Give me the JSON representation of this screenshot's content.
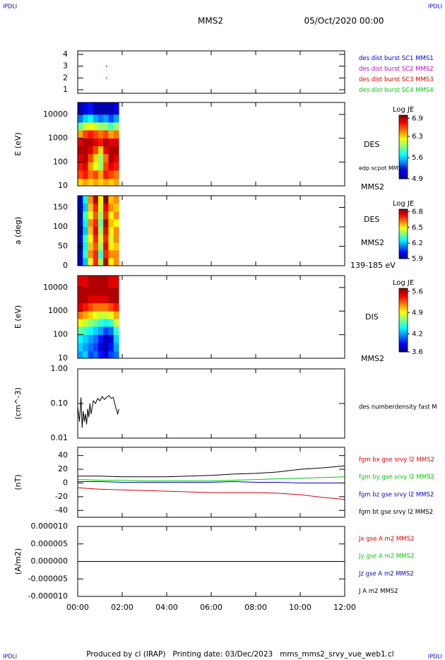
{
  "header": {
    "corner": "IPDLI",
    "title": "MMS2",
    "date": "05/Oct/2020 00:00"
  },
  "footer": "Produced by cl (IRAP)   Printing date: 03/Dec/2023   mms_mms2_srvy_vue_web1.cl",
  "chart_data": [
    {
      "type": "scatter",
      "ylim": [
        0.7,
        4.3
      ],
      "yticks": [
        1,
        2,
        3,
        4
      ],
      "x": [
        1.3,
        1.3
      ],
      "series": [
        {
          "name": "des dist burst SC1 MMS1",
          "color": "#0000cc",
          "values": [
            null,
            null
          ]
        },
        {
          "name": "des dist burst SC2 MMS2",
          "color": "#cc00cc",
          "values": [
            null,
            null
          ]
        },
        {
          "name": "des dist burst SC3 MMS3",
          "color": "#dd0000",
          "values": [
            3,
            2
          ]
        },
        {
          "name": "des dist burst SC4 MMS4",
          "color": "#00cc00",
          "values": [
            null,
            null
          ]
        }
      ]
    },
    {
      "type": "heatmap",
      "ylabel": "E (eV)",
      "log": true,
      "ylim": [
        10,
        32000
      ],
      "yticks": [
        10,
        100,
        1000,
        10000
      ],
      "side_labels": [
        "DES",
        "edp scpot MMS2",
        "MMS2"
      ],
      "clabel": "Log JE",
      "clim": [
        4.9,
        7.0
      ],
      "cticks": [
        6.9,
        6.3,
        5.6,
        4.9
      ],
      "x_edges": [
        0,
        0.23,
        0.46,
        0.69,
        0.92,
        1.15,
        1.38,
        1.61,
        1.85
      ],
      "y_edges": [
        10,
        20,
        45,
        100,
        220,
        470,
        1000,
        2200,
        4700,
        10000,
        32000
      ],
      "z": [
        [
          6.3,
          6.4,
          6.3,
          6.4,
          6.3,
          6.4,
          6.3,
          6.4
        ],
        [
          6.6,
          6.7,
          6.5,
          6.6,
          6.4,
          6.7,
          6.6,
          6.5
        ],
        [
          6.7,
          6.8,
          6.4,
          6.2,
          6.0,
          6.6,
          6.8,
          6.7
        ],
        [
          6.8,
          6.9,
          6.6,
          6.3,
          6.0,
          6.5,
          6.9,
          6.8
        ],
        [
          6.9,
          6.9,
          6.8,
          6.6,
          6.3,
          6.8,
          6.9,
          6.9
        ],
        [
          6.8,
          6.9,
          6.9,
          6.8,
          6.7,
          6.9,
          6.8,
          6.8
        ],
        [
          6.4,
          6.6,
          6.7,
          6.6,
          6.5,
          6.6,
          6.4,
          6.5
        ],
        [
          5.9,
          6.1,
          6.2,
          6.1,
          6.0,
          6.0,
          5.8,
          6.0
        ],
        [
          5.4,
          5.6,
          5.7,
          5.5,
          5.4,
          5.5,
          5.3,
          5.5
        ],
        [
          5.0,
          5.1,
          5.2,
          5.0,
          5.0,
          5.0,
          5.0,
          5.1
        ]
      ]
    },
    {
      "type": "heatmap",
      "ylabel": "a (deg)",
      "log": false,
      "ylim": [
        0,
        180
      ],
      "yticks": [
        0,
        50,
        100,
        150
      ],
      "side_labels": [
        "DES",
        "MMS2",
        "139-185 eV"
      ],
      "clabel": "Log JE",
      "clim": [
        5.9,
        6.85
      ],
      "cticks": [
        6.8,
        6.5,
        6.2,
        5.9
      ],
      "x_edges": [
        0,
        0.23,
        0.46,
        0.69,
        0.92,
        1.15,
        1.38,
        1.61,
        1.85
      ],
      "y_edges": [
        0,
        20,
        40,
        60,
        80,
        100,
        120,
        140,
        160,
        180
      ],
      "z": [
        [
          5.95,
          6.2,
          6.5,
          6.7,
          6.4,
          6.8,
          6.5,
          6.6
        ],
        [
          5.95,
          6.3,
          6.6,
          6.7,
          6.3,
          6.7,
          6.6,
          6.6
        ],
        [
          5.9,
          6.25,
          6.55,
          6.65,
          6.4,
          6.75,
          6.5,
          6.55
        ],
        [
          5.95,
          6.3,
          6.5,
          6.7,
          6.45,
          6.7,
          6.45,
          6.6
        ],
        [
          5.9,
          6.2,
          6.55,
          6.75,
          6.4,
          6.75,
          6.5,
          6.6
        ],
        [
          5.95,
          6.25,
          6.6,
          6.7,
          6.35,
          6.8,
          6.55,
          6.5
        ],
        [
          5.9,
          6.3,
          6.5,
          6.65,
          6.4,
          6.7,
          6.5,
          6.6
        ],
        [
          5.95,
          6.2,
          6.55,
          6.7,
          6.45,
          6.75,
          6.6,
          6.55
        ],
        [
          5.95,
          6.25,
          6.6,
          6.8,
          6.5,
          6.85,
          6.55,
          6.6
        ]
      ]
    },
    {
      "type": "heatmap",
      "ylabel": "E (eV)",
      "log": true,
      "ylim": [
        10,
        32000
      ],
      "yticks": [
        10,
        100,
        1000,
        10000
      ],
      "side_labels": [
        "DIS",
        "MMS2"
      ],
      "clabel": "Log JE",
      "clim": [
        3.6,
        5.7
      ],
      "cticks": [
        5.6,
        4.9,
        4.2,
        3.6
      ],
      "x_edges": [
        0,
        0.23,
        0.46,
        0.69,
        0.92,
        1.15,
        1.38,
        1.61,
        1.85
      ],
      "y_edges": [
        10,
        20,
        45,
        100,
        220,
        470,
        1000,
        2200,
        4700,
        10000,
        32000
      ],
      "z": [
        [
          4.2,
          4.3,
          4.0,
          4.1,
          3.9,
          3.8,
          4.0,
          4.1
        ],
        [
          4.3,
          4.2,
          4.1,
          4.0,
          3.8,
          3.7,
          3.9,
          4.2
        ],
        [
          4.4,
          4.3,
          4.2,
          4.1,
          3.9,
          3.7,
          3.8,
          4.3
        ],
        [
          4.6,
          4.5,
          4.4,
          4.3,
          4.2,
          4.0,
          4.1,
          4.5
        ],
        [
          4.9,
          4.8,
          4.7,
          4.6,
          4.5,
          4.4,
          4.5,
          4.8
        ],
        [
          5.2,
          5.1,
          5.0,
          4.9,
          4.8,
          4.8,
          4.9,
          5.1
        ],
        [
          5.5,
          5.4,
          5.3,
          5.2,
          5.2,
          5.2,
          5.3,
          5.4
        ],
        [
          5.6,
          5.6,
          5.5,
          5.5,
          5.5,
          5.5,
          5.6,
          5.6
        ],
        [
          5.6,
          5.6,
          5.6,
          5.6,
          5.6,
          5.6,
          5.6,
          5.6
        ],
        [
          5.5,
          5.5,
          5.6,
          5.6,
          5.6,
          5.6,
          5.5,
          5.5
        ]
      ]
    },
    {
      "type": "line",
      "ylabel": "(cm^-3)",
      "log": true,
      "ylim": [
        0.01,
        1
      ],
      "yticks": [
        {
          "value": 1,
          "label": "1.00"
        },
        {
          "value": 0.1,
          "label": "0.10"
        },
        {
          "value": 0.01,
          "label": "0.01"
        }
      ],
      "x": [
        0,
        0.08,
        0.15,
        0.2,
        0.25,
        0.3,
        0.35,
        0.4,
        0.45,
        0.5,
        0.55,
        0.6,
        0.7,
        0.8,
        0.9,
        1.0,
        1.1,
        1.2,
        1.3,
        1.4,
        1.5,
        1.6,
        1.7,
        1.8,
        1.85
      ],
      "series": [
        {
          "name": "des numberdensity fast M",
          "color": "#000000",
          "values": [
            0.08,
            0.03,
            0.15,
            0.02,
            0.06,
            0.03,
            0.05,
            0.025,
            0.07,
            0.04,
            0.1,
            0.05,
            0.12,
            0.1,
            0.14,
            0.12,
            0.16,
            0.13,
            0.15,
            0.17,
            0.14,
            0.15,
            0.08,
            0.05,
            0.07
          ]
        }
      ]
    },
    {
      "type": "line",
      "ylabel": "(nT)",
      "log": false,
      "ylim": [
        -50,
        52
      ],
      "yticks": [
        40,
        20,
        0,
        -20,
        -40
      ],
      "x": [
        0,
        1,
        2,
        3,
        4,
        5,
        6,
        7,
        8,
        9,
        10,
        11,
        12
      ],
      "series": [
        {
          "name": "fgm bx gse srvy l2 MMS2",
          "color": "#dd0000",
          "values": [
            -7,
            -9,
            -10,
            -11,
            -12,
            -13,
            -14,
            -14,
            -14,
            -15,
            -17,
            -21,
            -24
          ]
        },
        {
          "name": "fgm by gse srvy l2 MMS2",
          "color": "#00cc00",
          "values": [
            5,
            4,
            4,
            3,
            3,
            3,
            3,
            4,
            5,
            6,
            7,
            8,
            9
          ]
        },
        {
          "name": "fgm bz gse srvy l2 MMS2",
          "color": "#0000cc",
          "values": [
            2,
            2,
            1,
            1,
            1,
            1,
            1,
            2,
            1,
            1,
            0,
            0,
            0
          ]
        },
        {
          "name": "fgm bt gse srvy l2 MMS2",
          "color": "#000000",
          "values": [
            10,
            10,
            9,
            9,
            9,
            10,
            11,
            13,
            14,
            16,
            20,
            22,
            25
          ]
        }
      ]
    },
    {
      "type": "line",
      "ylabel": "(A/m2)",
      "log": false,
      "ylim": [
        -1e-05,
        1e-05
      ],
      "yticks": [
        {
          "value": 1e-05,
          "label": "0.000010"
        },
        {
          "value": 5e-06,
          "label": "0.000005"
        },
        {
          "value": 0,
          "label": "0.000000"
        },
        {
          "value": -5e-06,
          "label": "-0.000005"
        },
        {
          "value": -1e-05,
          "label": "-0.000010"
        }
      ],
      "x": [
        0,
        12
      ],
      "xlim": [
        0,
        12
      ],
      "xticks": [
        {
          "value": 0,
          "label": "00:00"
        },
        {
          "value": 2,
          "label": "02:00"
        },
        {
          "value": 4,
          "label": "04:00"
        },
        {
          "value": 6,
          "label": "06:00"
        },
        {
          "value": 8,
          "label": "08:00"
        },
        {
          "value": 10,
          "label": "10:00"
        },
        {
          "value": 12,
          "label": "12:00"
        }
      ],
      "series": [
        {
          "name": "Jx gse A m2 MMS2",
          "color": "#dd0000",
          "values": [
            0,
            0
          ]
        },
        {
          "name": "Jy gse A m2 MMS2",
          "color": "#00cc00",
          "values": [
            0,
            0
          ]
        },
        {
          "name": "Jz gse A m2 MMS2",
          "color": "#0000cc",
          "values": [
            0,
            0
          ]
        },
        {
          "name": "J A m2 MMS2",
          "color": "#000000",
          "values": [
            0,
            0
          ]
        }
      ]
    }
  ]
}
